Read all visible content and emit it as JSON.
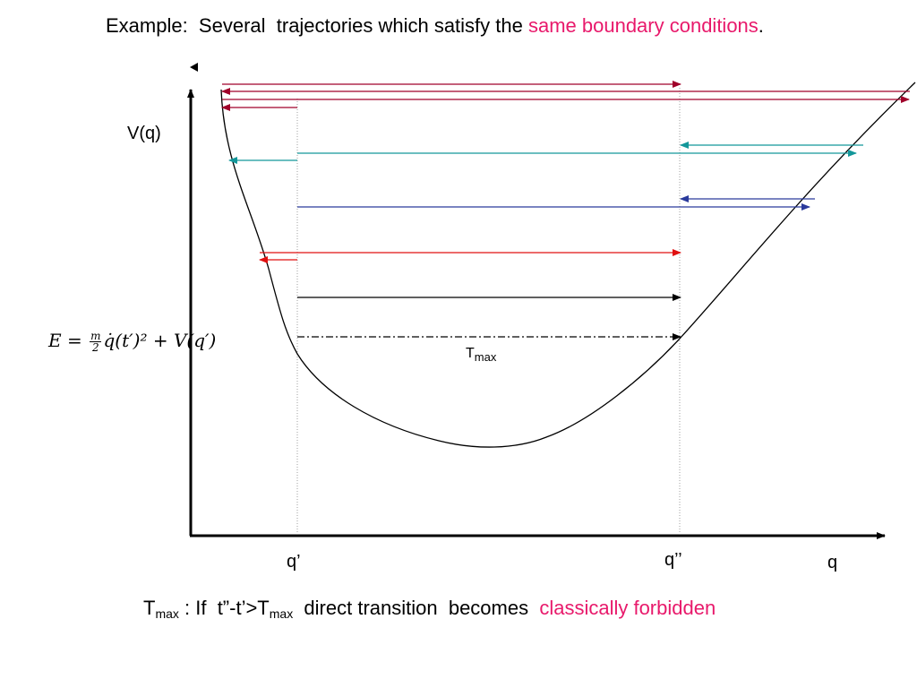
{
  "title": {
    "prefix": "Example:  Several  trajectories which satisfy the ",
    "highlight": "same boundary conditions",
    "suffix": "."
  },
  "axes": {
    "y_label": "V(q)",
    "x_label": "q",
    "q_prime": "q’",
    "q_double_prime": "q’’"
  },
  "formula": {
    "lhs": "E = ",
    "frac_num": "m",
    "frac_den": "2",
    "rhs": "q̇(t′)² + V(q′)"
  },
  "tmax_label": {
    "main": "T",
    "sub": "max"
  },
  "footer": {
    "t1": "T",
    "t1_sub": "max",
    "middle": " : If  t”-t’>T",
    "t2_sub": "max",
    "after": "  direct transition  becomes  ",
    "highlight": "classically forbidden"
  },
  "colors": {
    "dark_red": "#a0002a",
    "teal": "#13979a",
    "navy": "#2a3a9c",
    "red": "#e01010",
    "black": "#000000",
    "pink": "#e8196b"
  }
}
